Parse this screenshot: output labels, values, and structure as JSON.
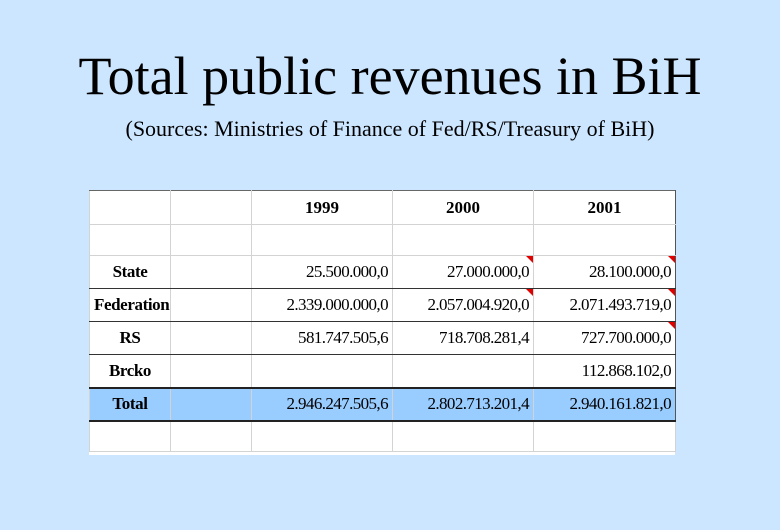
{
  "slide": {
    "title": "Total public revenues in BiH",
    "subtitle": "(Sources: Ministries of Finance of Fed/RS/Treasury of BiH)"
  },
  "table": {
    "years": [
      "1999",
      "2000",
      "2001"
    ],
    "rows": [
      {
        "label": "State",
        "values": [
          "25.500.000,0",
          "27.000.000,0",
          "28.100.000,0"
        ]
      },
      {
        "label": "Federation",
        "values": [
          "2.339.000.000,0",
          "2.057.004.920,0",
          "2.071.493.719,0"
        ]
      },
      {
        "label": "RS",
        "values": [
          "581.747.505,6",
          "718.708.281,4",
          "727.700.000,0"
        ]
      },
      {
        "label": "Brcko",
        "values": [
          "",
          "",
          "112.868.102,0"
        ]
      }
    ],
    "total": {
      "label": "Total",
      "values": [
        "2.946.247.505,6",
        "2.802.713.201,4",
        "2.940.161.821,0"
      ]
    }
  },
  "colors": {
    "background": "#cce6ff",
    "total_row": "#99ccff",
    "comment_marker": "#e00000"
  }
}
